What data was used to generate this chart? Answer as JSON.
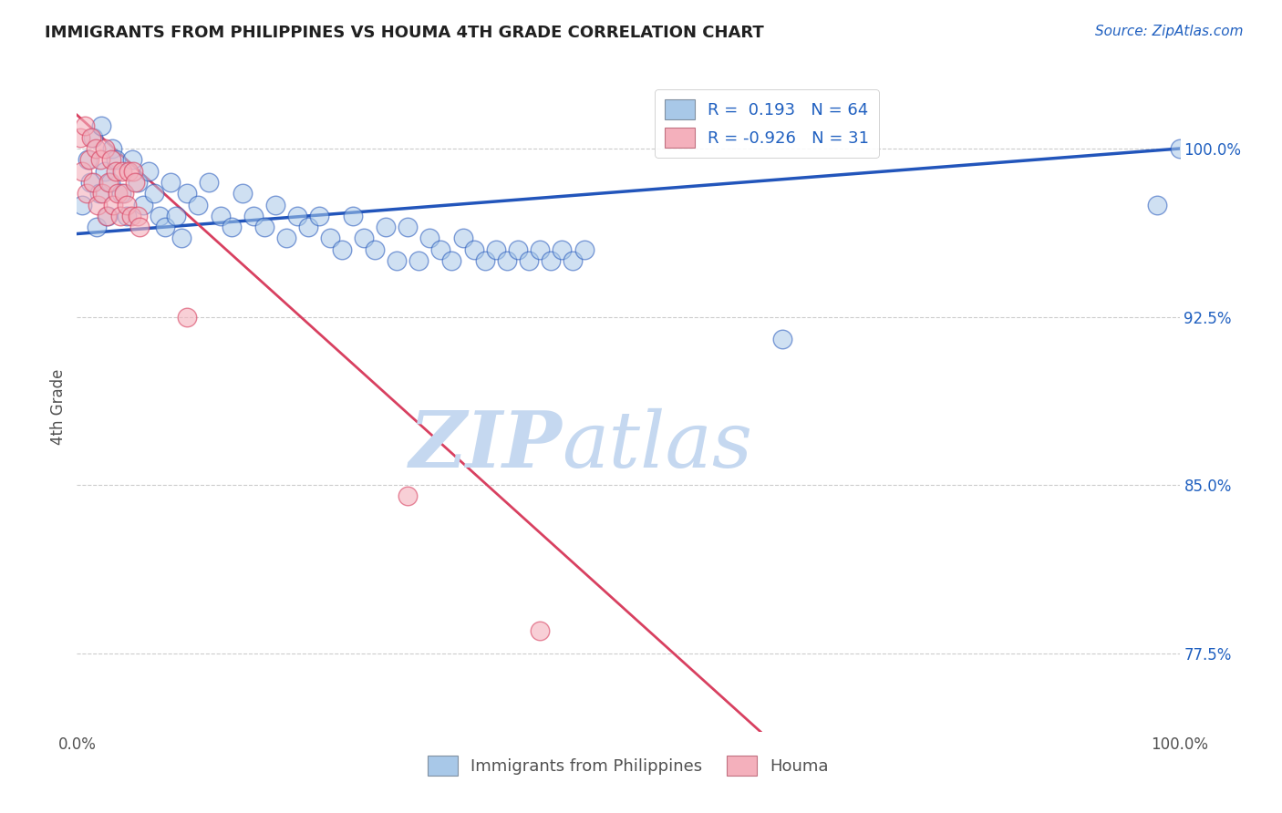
{
  "title": "IMMIGRANTS FROM PHILIPPINES VS HOUMA 4TH GRADE CORRELATION CHART",
  "source": "Source: ZipAtlas.com",
  "ylabel": "4th Grade",
  "y_ticks_right": [
    100.0,
    92.5,
    85.0,
    77.5
  ],
  "x_range": [
    0.0,
    100.0
  ],
  "y_range": [
    74.0,
    103.0
  ],
  "legend_blue_r": "0.193",
  "legend_blue_n": "64",
  "legend_pink_r": "-0.926",
  "legend_pink_n": "31",
  "blue_color": "#A8C8E8",
  "pink_color": "#F4B0BC",
  "line_blue_color": "#2255BB",
  "line_pink_color": "#D84060",
  "watermark_zip": "ZIP",
  "watermark_atlas": "atlas",
  "watermark_color": "#C5D8F0",
  "background_color": "#FFFFFF",
  "title_color": "#202020",
  "source_color": "#2060C0",
  "legend_text_color": "#2060C0",
  "dashed_line_color": "#C0C0C0",
  "blue_scatter_x": [
    0.5,
    1.0,
    1.2,
    1.5,
    1.8,
    2.0,
    2.2,
    2.5,
    2.8,
    3.0,
    3.2,
    3.5,
    4.0,
    4.5,
    5.0,
    5.5,
    6.0,
    6.5,
    7.0,
    7.5,
    8.0,
    8.5,
    9.0,
    9.5,
    10.0,
    11.0,
    12.0,
    13.0,
    14.0,
    15.0,
    16.0,
    17.0,
    18.0,
    19.0,
    20.0,
    21.0,
    22.0,
    23.0,
    24.0,
    25.0,
    26.0,
    27.0,
    28.0,
    29.0,
    30.0,
    31.0,
    32.0,
    33.0,
    34.0,
    35.0,
    36.0,
    37.0,
    38.0,
    39.0,
    40.0,
    41.0,
    42.0,
    43.0,
    44.0,
    45.0,
    46.0,
    64.0,
    98.0,
    100.0
  ],
  "blue_scatter_y": [
    97.5,
    99.5,
    98.5,
    100.5,
    96.5,
    98.0,
    101.0,
    99.0,
    97.0,
    98.5,
    100.0,
    99.5,
    98.0,
    97.0,
    99.5,
    98.5,
    97.5,
    99.0,
    98.0,
    97.0,
    96.5,
    98.5,
    97.0,
    96.0,
    98.0,
    97.5,
    98.5,
    97.0,
    96.5,
    98.0,
    97.0,
    96.5,
    97.5,
    96.0,
    97.0,
    96.5,
    97.0,
    96.0,
    95.5,
    97.0,
    96.0,
    95.5,
    96.5,
    95.0,
    96.5,
    95.0,
    96.0,
    95.5,
    95.0,
    96.0,
    95.5,
    95.0,
    95.5,
    95.0,
    95.5,
    95.0,
    95.5,
    95.0,
    95.5,
    95.0,
    95.5,
    91.5,
    97.5,
    100.0
  ],
  "pink_scatter_x": [
    0.3,
    0.5,
    0.7,
    0.9,
    1.1,
    1.3,
    1.5,
    1.7,
    1.9,
    2.1,
    2.3,
    2.5,
    2.7,
    2.9,
    3.1,
    3.3,
    3.5,
    3.7,
    3.9,
    4.1,
    4.3,
    4.5,
    4.7,
    4.9,
    5.1,
    5.3,
    5.5,
    5.7,
    10.0,
    30.0,
    42.0
  ],
  "pink_scatter_y": [
    100.5,
    99.0,
    101.0,
    98.0,
    99.5,
    100.5,
    98.5,
    100.0,
    97.5,
    99.5,
    98.0,
    100.0,
    97.0,
    98.5,
    99.5,
    97.5,
    99.0,
    98.0,
    97.0,
    99.0,
    98.0,
    97.5,
    99.0,
    97.0,
    99.0,
    98.5,
    97.0,
    96.5,
    92.5,
    84.5,
    78.5
  ],
  "blue_line_x0": 0,
  "blue_line_x1": 100,
  "blue_line_y0": 96.2,
  "blue_line_y1": 100.0,
  "pink_line_x0": 0,
  "pink_line_x1": 62,
  "pink_line_y0": 101.5,
  "pink_line_y1": 74.0,
  "dashed_line_y1": 100.8,
  "dashed_line_y2": 92.5,
  "dashed_line_y3": 85.0,
  "dashed_line_y4": 77.5
}
